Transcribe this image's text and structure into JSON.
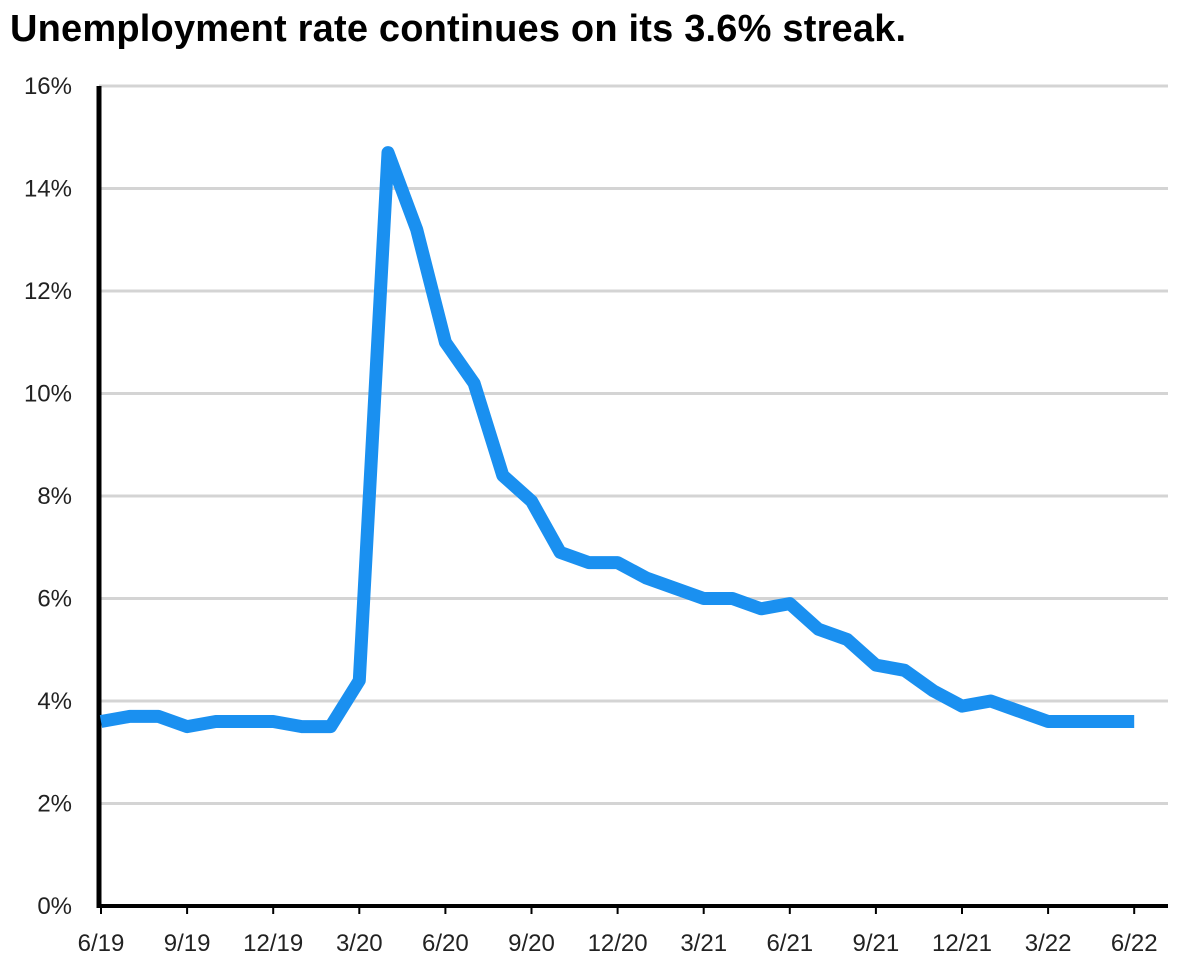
{
  "chart_data": {
    "type": "line",
    "title": "Unemployment rate continues on its 3.6% streak.",
    "xlabel": "",
    "ylabel": "",
    "ylim": [
      0,
      16
    ],
    "y_ticks": [
      0,
      2,
      4,
      6,
      8,
      10,
      12,
      14,
      16
    ],
    "y_tick_labels": [
      "0%",
      "2%",
      "4%",
      "6%",
      "8%",
      "10%",
      "12%",
      "14%",
      "16%"
    ],
    "x_tick_labels": [
      "6/19",
      "9/19",
      "12/19",
      "3/20",
      "6/20",
      "9/20",
      "12/20",
      "3/21",
      "6/21",
      "9/21",
      "12/21",
      "3/22",
      "6/22"
    ],
    "grid": true,
    "legend": "none",
    "line_color": "#1a90f0",
    "series": [
      {
        "x": [
          "6/19",
          "7/19",
          "8/19",
          "9/19",
          "10/19",
          "11/19",
          "12/19",
          "1/20",
          "2/20",
          "3/20",
          "4/20",
          "5/20",
          "6/20",
          "7/20",
          "8/20",
          "9/20",
          "10/20",
          "11/20",
          "12/20",
          "1/21",
          "2/21",
          "3/21",
          "4/21",
          "5/21",
          "6/21",
          "7/21",
          "8/21",
          "9/21",
          "10/21",
          "11/21",
          "12/21",
          "1/22",
          "2/22",
          "3/22",
          "4/22",
          "5/22",
          "6/22"
        ],
        "values": [
          3.6,
          3.7,
          3.7,
          3.5,
          3.6,
          3.6,
          3.6,
          3.5,
          3.5,
          4.4,
          14.7,
          13.2,
          11.0,
          10.2,
          8.4,
          7.9,
          6.9,
          6.7,
          6.7,
          6.4,
          6.2,
          6.0,
          6.0,
          5.8,
          5.9,
          5.4,
          5.2,
          4.7,
          4.6,
          4.2,
          3.9,
          4.0,
          3.8,
          3.6,
          3.6,
          3.6,
          3.6
        ]
      }
    ]
  }
}
